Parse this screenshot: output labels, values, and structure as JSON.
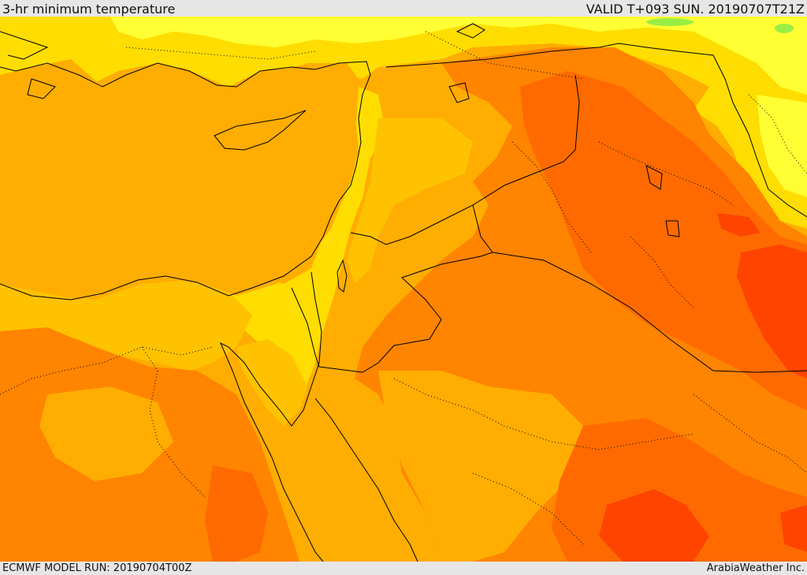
{
  "header": {
    "title": "3-hr minimum temperature",
    "valid": "VALID T+093 SUN. 20190707T21Z"
  },
  "footer": {
    "model_run": "ECMWF MODEL RUN: 20190704T00Z",
    "credit": "ArabiaWeather Inc."
  },
  "map": {
    "field": "3-hr minimum temperature",
    "colors": {
      "cool_green": "#99ee44",
      "yellow_light": "#ffff33",
      "yellow": "#ffdd00",
      "amber": "#ffc200",
      "orange_light": "#ffad00",
      "orange": "#ff8400",
      "orange_dark": "#ff6a00",
      "red": "#ff4400",
      "coastline": "#000000",
      "border_dotted": "#000000"
    }
  }
}
